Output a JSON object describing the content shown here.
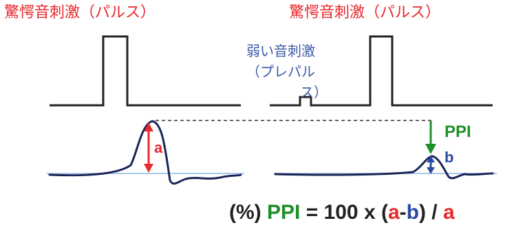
{
  "labels": {
    "startle_left": "驚愕音刺激（パルス）",
    "startle_right": "驚愕音刺激（パルス）",
    "weak_line1": "弱い音刺激",
    "weak_line2": "（プレパル",
    "weak_line3": "ス）",
    "a": "a",
    "b": "b",
    "ppi": "PPI"
  },
  "formula": {
    "prefix": "(%)",
    "ppi": "PPI",
    "eq": "= 100 x (",
    "a": "a",
    "minus": "-",
    "b": "b",
    "close": ") /",
    "a2": "a"
  },
  "colors": {
    "red": "#e8292c",
    "blue": "#2a4aa0",
    "green": "#1f8f2a",
    "trace": "#1a2456",
    "baseline": "#a9c8ea"
  }
}
